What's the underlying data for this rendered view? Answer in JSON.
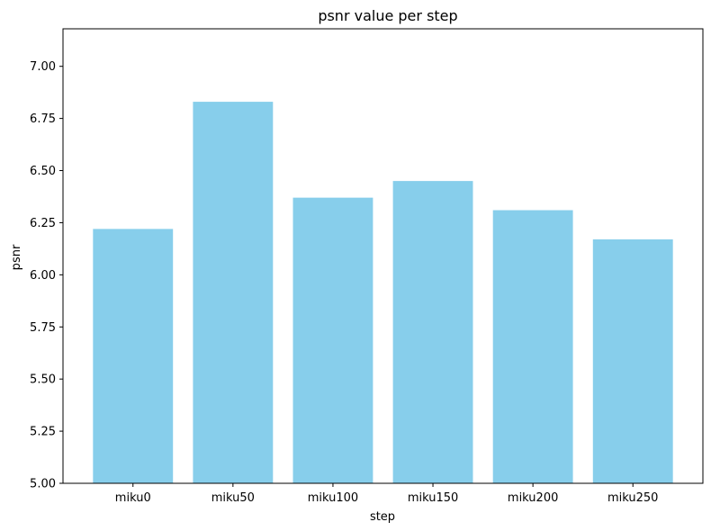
{
  "chart_data": {
    "type": "bar",
    "title": "psnr value per step",
    "xlabel": "step",
    "ylabel": "psnr",
    "categories": [
      "miku0",
      "miku50",
      "miku100",
      "miku150",
      "miku200",
      "miku250"
    ],
    "values": [
      6.22,
      6.83,
      6.37,
      6.45,
      6.31,
      6.17
    ],
    "ylim": [
      5.0,
      7.18
    ],
    "yticks": [
      "5.00",
      "5.25",
      "5.50",
      "5.75",
      "6.00",
      "6.25",
      "6.50",
      "6.75",
      "7.00"
    ],
    "bar_color": "#87ceeb",
    "grid": false,
    "legend": "none"
  }
}
